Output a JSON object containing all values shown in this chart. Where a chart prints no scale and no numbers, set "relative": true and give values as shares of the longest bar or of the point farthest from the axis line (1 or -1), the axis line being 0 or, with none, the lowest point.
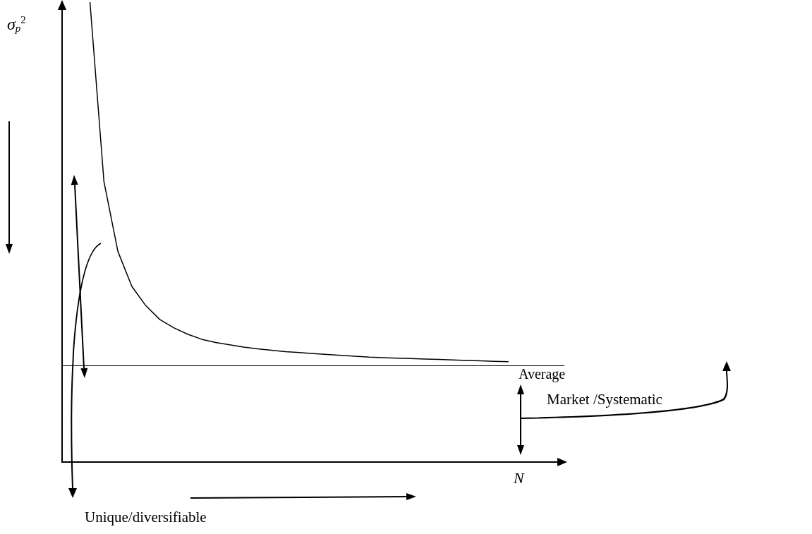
{
  "chart_data": {
    "type": "line",
    "relative": true,
    "xlabel": "N",
    "ylabel": "σ$_{p}$$^{2}$",
    "categories": [
      null,
      null,
      null,
      null,
      null,
      null,
      null,
      null,
      null,
      null,
      null,
      null,
      null,
      null,
      null,
      null,
      null,
      null,
      null,
      null,
      null,
      null,
      null,
      null,
      null,
      null,
      null,
      null,
      null,
      null,
      null,
      null,
      null,
      null,
      null,
      null,
      null
    ],
    "series": [
      {
        "color": "#000000",
        "values": [
          null,
          null,
          1,
          0.61,
          0.458,
          0.382,
          0.34,
          0.31,
          0.292,
          0.278,
          0.267,
          0.26,
          0.255,
          0.25,
          0.246,
          0.243,
          0.24,
          0.238,
          0.236,
          0.234,
          0.232,
          0.23,
          0.228,
          0.227,
          0.226,
          0.225,
          0.224,
          0.223,
          0.222,
          0.221,
          0.22,
          0.219,
          0.218,
          null,
          null,
          null,
          null
        ]
      }
    ],
    "ref_lines": [
      {
        "axis": "y",
        "value": 0.21,
        "label": "Average",
        "color": "#000000"
      }
    ],
    "annotations": [
      "Market /Systematic",
      "Unique/diversifiable"
    ]
  }
}
